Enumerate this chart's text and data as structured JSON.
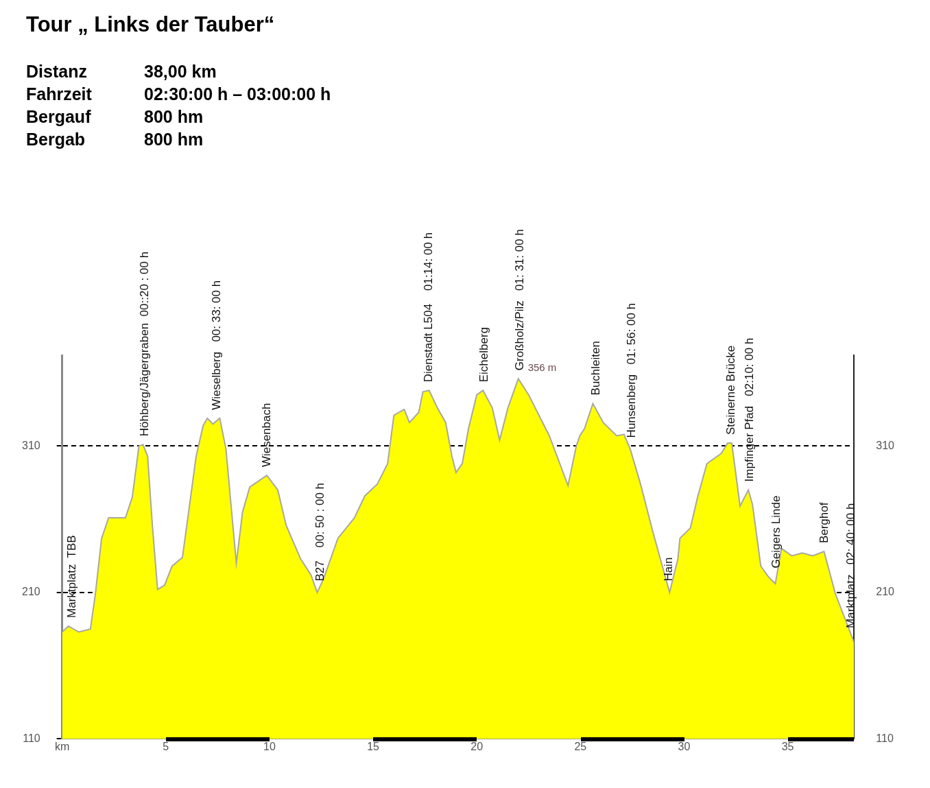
{
  "chart_data": {
    "type": "area",
    "title": "Tour „ Links der Tauber“",
    "annotations": [
      "Distanz 38,00 km",
      "Fahrzeit 02:30:00 h – 03:00:00 h",
      "Bergauf 800 hm",
      "Bergab 800 hm",
      {
        "text": "Marktplatz  TBB",
        "x": 0.4,
        "y": 187
      },
      {
        "text": "Höhberg/Jägergraben  00::20 : 00 h",
        "x": 3.9,
        "y": 311
      },
      {
        "text": "Wieselberg   00: 33: 00 h",
        "x": 7.4,
        "y": 329
      },
      {
        "text": "Wiesenbach",
        "x": 9.8,
        "y": 290
      },
      {
        "text": "B27    00: 50 : 00 h",
        "x": 12.4,
        "y": 212
      },
      {
        "text": "Dienstadt L504    01:14: 00 h",
        "x": 17.6,
        "y": 348
      },
      {
        "text": "Eichelberg",
        "x": 20.3,
        "y": 348
      },
      {
        "text": "Großholz/Pilz   01: 31: 00 h",
        "x": 22.0,
        "y": 356
      },
      {
        "text": "356 m",
        "x": 22.0,
        "y": 356
      },
      {
        "text": "Buchleiten",
        "x": 25.7,
        "y": 339
      },
      {
        "text": "Hunsenberg   01: 56: 00 h",
        "x": 27.4,
        "y": 310
      },
      {
        "text": "Hain",
        "x": 29.2,
        "y": 212
      },
      {
        "text": "Steinerne Brücke",
        "x": 32.2,
        "y": 312
      },
      {
        "text": "Impfinger Pfad   02:10: 00 h",
        "x": 33.1,
        "y": 280
      },
      {
        "text": "Geigers Linde",
        "x": 34.4,
        "y": 221
      },
      {
        "text": "Berghof",
        "x": 36.7,
        "y": 238
      },
      {
        "text": "Marktplatz   02: 40: 00 h",
        "x": 38.0,
        "y": 180
      }
    ],
    "x": [
      0,
      0.3,
      0.8,
      1.36,
      1.6,
      1.9,
      2.24,
      3.05,
      3.38,
      3.7,
      3.9,
      4.12,
      4.35,
      4.6,
      4.94,
      5.3,
      5.8,
      6.1,
      6.46,
      6.8,
      7.0,
      7.27,
      7.6,
      7.9,
      8.2,
      8.4,
      8.7,
      9.05,
      9.87,
      10.4,
      10.8,
      11.5,
      12.0,
      12.3,
      12.6,
      13.3,
      14.1,
      14.6,
      15.2,
      15.7,
      16.0,
      16.5,
      16.75,
      17.2,
      17.4,
      17.7,
      18.1,
      18.5,
      18.8,
      19.0,
      19.3,
      19.6,
      20.0,
      20.3,
      20.75,
      21.1,
      21.5,
      22.0,
      22.5,
      23.5,
      24.4,
      24.8,
      24.97,
      25.2,
      25.6,
      26.1,
      26.75,
      27.1,
      27.4,
      27.9,
      28.5,
      29.3,
      29.7,
      29.8,
      30.3,
      30.65,
      31.1,
      31.8,
      32.1,
      32.3,
      32.7,
      33.1,
      33.3,
      33.7,
      34.05,
      34.4,
      34.7,
      35.2,
      35.7,
      36.2,
      36.75,
      37.3,
      38.2
    ],
    "series": [
      {
        "color": "#ffff00",
        "values": [
          183,
          187,
          183,
          185,
          209,
          247,
          261,
          261,
          275,
          310,
          311,
          303,
          256,
          212,
          215,
          228,
          234,
          265,
          303,
          324,
          329,
          325,
          329,
          308,
          261,
          230,
          265,
          282,
          290,
          280,
          256,
          233,
          222,
          210,
          219,
          247,
          261,
          276,
          284,
          298,
          331,
          335,
          326,
          333,
          347,
          348,
          336,
          326,
          303,
          292,
          298,
          322,
          345,
          348,
          336,
          314,
          336,
          356,
          345,
          317,
          283,
          310,
          317,
          322,
          339,
          326,
          317,
          318,
          308,
          284,
          251,
          210,
          233,
          247,
          254,
          275,
          298,
          305,
          312,
          312,
          269,
          280,
          270,
          228,
          221,
          216,
          240,
          235,
          237,
          235,
          238,
          209,
          176
        ]
      }
    ],
    "xlim": [
      0,
      38.2
    ],
    "xticks": [
      {
        "value": 0,
        "label": "km"
      },
      5,
      10,
      15,
      20,
      25,
      30,
      35
    ],
    "ylim": [
      110,
      372
    ],
    "yticks": [
      110,
      210,
      310
    ],
    "y2lim": [
      110,
      372
    ],
    "y2ticks": [
      110,
      210,
      310
    ],
    "grid": "y"
  }
}
